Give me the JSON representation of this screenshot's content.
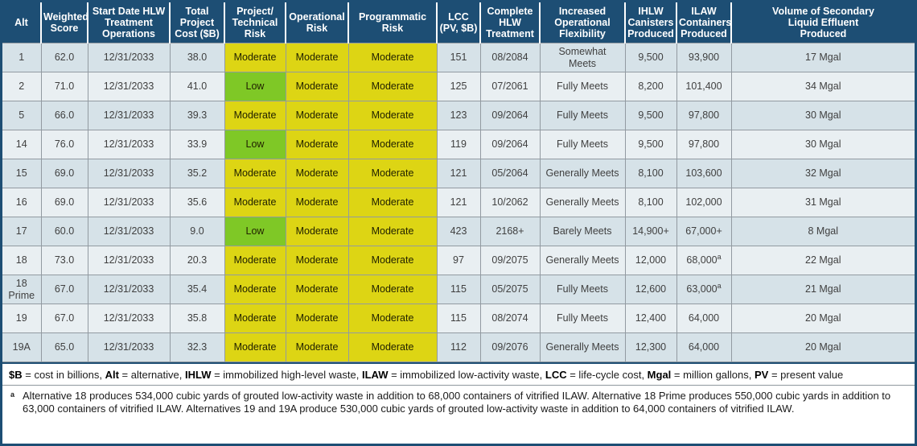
{
  "colors": {
    "header_bg": "#1d4e74",
    "row_odd": "#d6e2e8",
    "row_even": "#e9eff2",
    "risk": {
      "Moderate": "#ddd514",
      "Low": "#7fc826"
    }
  },
  "table": {
    "columns": [
      "Alt",
      "Weighted\nScore",
      "Start Date HLW\nTreatment\nOperations",
      "Total\nProject\nCost ($B)",
      "Project/\nTechnical\nRisk",
      "Operational\nRisk",
      "Programmatic\nRisk",
      "LCC\n(PV, $B)",
      "Complete\nHLW\nTreatment",
      "Increased\nOperational\nFlexibility",
      "IHLW\nCanisters\nProduced",
      "ILAW\nContainers\nProduced",
      "Volume of Secondary\nLiquid Effluent\nProduced"
    ],
    "cell_keys": [
      "alt",
      "weighted_score",
      "start_date",
      "total_cost",
      "project_technical_risk",
      "operational_risk",
      "programmatic_risk",
      "lcc",
      "complete_hlw",
      "flexibility",
      "ihlw",
      "ilaw",
      "volume"
    ],
    "risk_columns": [
      "project_technical_risk",
      "operational_risk",
      "programmatic_risk"
    ],
    "rows": [
      {
        "alt": "1",
        "weighted_score": "62.0",
        "start_date": "12/31/2033",
        "total_cost": "38.0",
        "project_technical_risk": "Moderate",
        "operational_risk": "Moderate",
        "programmatic_risk": "Moderate",
        "lcc": "151",
        "complete_hlw": "08/2084",
        "flexibility": "Somewhat\nMeets",
        "ihlw": "9,500",
        "ilaw": "93,900",
        "volume": "17 Mgal"
      },
      {
        "alt": "2",
        "weighted_score": "71.0",
        "start_date": "12/31/2033",
        "total_cost": "41.0",
        "project_technical_risk": "Low",
        "operational_risk": "Moderate",
        "programmatic_risk": "Moderate",
        "lcc": "125",
        "complete_hlw": "07/2061",
        "flexibility": "Fully Meets",
        "ihlw": "8,200",
        "ilaw": "101,400",
        "volume": "34 Mgal"
      },
      {
        "alt": "5",
        "weighted_score": "66.0",
        "start_date": "12/31/2033",
        "total_cost": "39.3",
        "project_technical_risk": "Moderate",
        "operational_risk": "Moderate",
        "programmatic_risk": "Moderate",
        "lcc": "123",
        "complete_hlw": "09/2064",
        "flexibility": "Fully Meets",
        "ihlw": "9,500",
        "ilaw": "97,800",
        "volume": "30 Mgal"
      },
      {
        "alt": "14",
        "weighted_score": "76.0",
        "start_date": "12/31/2033",
        "total_cost": "33.9",
        "project_technical_risk": "Low",
        "operational_risk": "Moderate",
        "programmatic_risk": "Moderate",
        "lcc": "119",
        "complete_hlw": "09/2064",
        "flexibility": "Fully Meets",
        "ihlw": "9,500",
        "ilaw": "97,800",
        "volume": "30 Mgal"
      },
      {
        "alt": "15",
        "weighted_score": "69.0",
        "start_date": "12/31/2033",
        "total_cost": "35.2",
        "project_technical_risk": "Moderate",
        "operational_risk": "Moderate",
        "programmatic_risk": "Moderate",
        "lcc": "121",
        "complete_hlw": "05/2064",
        "flexibility": "Generally Meets",
        "ihlw": "8,100",
        "ilaw": "103,600",
        "volume": "32 Mgal"
      },
      {
        "alt": "16",
        "weighted_score": "69.0",
        "start_date": "12/31/2033",
        "total_cost": "35.6",
        "project_technical_risk": "Moderate",
        "operational_risk": "Moderate",
        "programmatic_risk": "Moderate",
        "lcc": "121",
        "complete_hlw": "10/2062",
        "flexibility": "Generally Meets",
        "ihlw": "8,100",
        "ilaw": "102,000",
        "volume": "31 Mgal"
      },
      {
        "alt": "17",
        "weighted_score": "60.0",
        "start_date": "12/31/2033",
        "total_cost": "9.0",
        "project_technical_risk": "Low",
        "operational_risk": "Moderate",
        "programmatic_risk": "Moderate",
        "lcc": "423",
        "complete_hlw": "2168+",
        "flexibility": "Barely Meets",
        "ihlw": "14,900+",
        "ilaw": "67,000+",
        "volume": "8 Mgal"
      },
      {
        "alt": "18",
        "weighted_score": "73.0",
        "start_date": "12/31/2033",
        "total_cost": "20.3",
        "project_technical_risk": "Moderate",
        "operational_risk": "Moderate",
        "programmatic_risk": "Moderate",
        "lcc": "97",
        "complete_hlw": "09/2075",
        "flexibility": "Generally Meets",
        "ihlw": "12,000",
        "ilaw": "68,000",
        "ilaw_note": "a",
        "volume": "22 Mgal"
      },
      {
        "alt": "18\nPrime",
        "weighted_score": "67.0",
        "start_date": "12/31/2033",
        "total_cost": "35.4",
        "project_technical_risk": "Moderate",
        "operational_risk": "Moderate",
        "programmatic_risk": "Moderate",
        "lcc": "115",
        "complete_hlw": "05/2075",
        "flexibility": "Fully Meets",
        "ihlw": "12,600",
        "ilaw": "63,000",
        "ilaw_note": "a",
        "volume": "21 Mgal"
      },
      {
        "alt": "19",
        "weighted_score": "67.0",
        "start_date": "12/31/2033",
        "total_cost": "35.8",
        "project_technical_risk": "Moderate",
        "operational_risk": "Moderate",
        "programmatic_risk": "Moderate",
        "lcc": "115",
        "complete_hlw": "08/2074",
        "flexibility": "Fully Meets",
        "ihlw": "12,400",
        "ilaw": "64,000",
        "volume": "20 Mgal"
      },
      {
        "alt": "19A",
        "weighted_score": "65.0",
        "start_date": "12/31/2033",
        "total_cost": "32.3",
        "project_technical_risk": "Moderate",
        "operational_risk": "Moderate",
        "programmatic_risk": "Moderate",
        "lcc": "112",
        "complete_hlw": "09/2076",
        "flexibility": "Generally Meets",
        "ihlw": "12,300",
        "ilaw": "64,000",
        "volume": "20 Mgal"
      }
    ]
  },
  "footer": {
    "abbreviations": [
      {
        "term": "$B",
        "definition": "cost in billions"
      },
      {
        "term": "Alt",
        "definition": "alternative"
      },
      {
        "term": "IHLW",
        "definition": "immobilized high-level waste"
      },
      {
        "term": "ILAW",
        "definition": "immobilized low-activity waste"
      },
      {
        "term": "LCC",
        "definition": "life-cycle cost"
      },
      {
        "term": "Mgal",
        "definition": "million gallons"
      },
      {
        "term": "PV",
        "definition": "present value"
      }
    ],
    "footnote_marker": "a",
    "footnote_text": "Alternative 18 produces 534,000 cubic yards of grouted low-activity waste in addition to 68,000 containers of vitrified ILAW. Alternative 18 Prime produces 550,000 cubic yards in addition to 63,000 containers of vitrified ILAW. Alternatives 19 and 19A produce 530,000 cubic yards of grouted low-activity waste in addition to 64,000 containers of vitrified ILAW."
  }
}
